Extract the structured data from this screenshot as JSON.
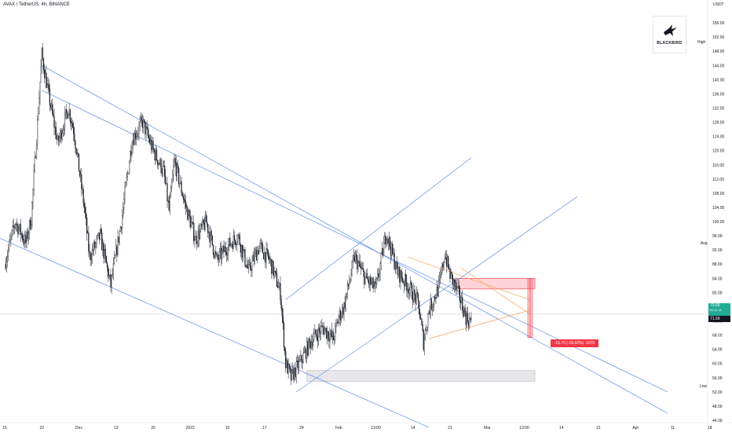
{
  "header": {
    "title": "AVAX / TetherUS, 4h, BINANCE",
    "price_unit": "USDT"
  },
  "logo": {
    "text": "BLACKBIRD",
    "icon": "blackbird-icon"
  },
  "side_labels": {
    "high": "High",
    "avg": "Avg",
    "low": "Low"
  },
  "price_tags": {
    "current": "73.69",
    "countdown": "01:11:11",
    "level": "71.69"
  },
  "measure": {
    "label": "-16.70 (-19.92%) -1670"
  },
  "colors": {
    "candle": "#131722",
    "trendline": "#5b8def",
    "orange": "#f7a14a",
    "red": "#f23645",
    "red_zone": "rgba(242,54,69,0.22)",
    "grey_zone": "rgba(120,123,134,0.18)",
    "green": "#22ab94",
    "axis_text": "#131722"
  },
  "chart_data": {
    "type": "candlestick",
    "title": "AVAX / TetherUS, 4h, BINANCE",
    "ylabel": "USDT",
    "y_axis_position": "right",
    "grid": false,
    "ylim": [
      44,
      160
    ],
    "y_ticks": [
      156,
      152,
      148,
      144,
      140,
      136,
      132,
      128,
      124,
      120,
      116,
      112,
      108,
      104,
      100,
      96,
      92,
      88,
      84,
      80,
      76,
      72,
      68,
      64,
      60,
      56,
      52,
      48,
      44
    ],
    "y_tick_labels": [
      "156.00",
      "152.00",
      "148.00",
      "144.00",
      "140.00",
      "136.00",
      "132.00",
      "128.00",
      "124.00",
      "120.00",
      "116.00",
      "112.00",
      "108.00",
      "104.00",
      "100.00",
      "96.00",
      "92.00",
      "88.00",
      "84.00",
      "80.00",
      "76.00",
      "72.00",
      "68.00",
      "64.00",
      "60.00",
      "56.00",
      "52.00",
      "48.00",
      "44.00"
    ],
    "x_tick_labels": [
      "15",
      "22",
      "Dec",
      "13",
      "20",
      "2022",
      "10",
      "17",
      "24",
      "Feb",
      "13:00",
      "14",
      "21",
      "Mar",
      "13:00",
      "14",
      "21",
      "Apr",
      "11",
      "18"
    ],
    "x_tick_index": [
      0,
      7,
      14,
      21,
      28,
      35,
      42,
      49,
      56,
      63,
      70,
      77,
      84,
      91,
      98,
      105,
      112,
      119,
      126,
      133
    ],
    "price_path": [
      [
        0,
        88
      ],
      [
        2,
        100
      ],
      [
        4,
        94
      ],
      [
        5,
        101
      ],
      [
        7,
        147
      ],
      [
        8,
        138
      ],
      [
        10,
        122
      ],
      [
        12,
        132
      ],
      [
        13,
        126
      ],
      [
        15,
        104
      ],
      [
        16,
        90
      ],
      [
        18,
        96
      ],
      [
        20,
        82
      ],
      [
        22,
        100
      ],
      [
        24,
        123
      ],
      [
        26,
        128
      ],
      [
        28,
        120
      ],
      [
        30,
        114
      ],
      [
        31,
        103
      ],
      [
        32,
        117
      ],
      [
        34,
        105
      ],
      [
        36,
        95
      ],
      [
        38,
        100
      ],
      [
        40,
        89
      ],
      [
        42,
        93
      ],
      [
        44,
        96
      ],
      [
        46,
        86
      ],
      [
        48,
        93
      ],
      [
        50,
        89
      ],
      [
        52,
        80
      ],
      [
        53,
        60
      ],
      [
        54,
        56
      ],
      [
        56,
        61
      ],
      [
        58,
        67
      ],
      [
        60,
        70
      ],
      [
        62,
        67
      ],
      [
        63,
        73
      ],
      [
        64,
        76
      ],
      [
        66,
        90
      ],
      [
        68,
        84
      ],
      [
        70,
        81
      ],
      [
        72,
        97
      ],
      [
        74,
        86
      ],
      [
        76,
        82
      ],
      [
        78,
        77
      ],
      [
        79,
        66
      ],
      [
        80,
        75
      ],
      [
        82,
        82
      ],
      [
        83,
        91
      ],
      [
        84,
        85
      ],
      [
        86,
        78
      ],
      [
        87,
        73
      ],
      [
        88,
        71.69
      ]
    ],
    "current_price": 73.69,
    "level_price": 71.69,
    "stats": {
      "high": 147.0,
      "avg": 91.98,
      "low": 52.95
    },
    "zones": [
      {
        "kind": "red",
        "from_index": 85,
        "to_index": 100,
        "from_price": 84.0,
        "to_price": 81.0
      },
      {
        "kind": "grey",
        "from_index": 57,
        "to_index": 100,
        "from_price": 58.0,
        "to_price": 55.0
      }
    ],
    "measure": {
      "from_price": 84.0,
      "to_price": 67.3,
      "change": -16.7,
      "percent": -19.92,
      "ticks": -1670
    },
    "trendlines": [
      {
        "from": [
          7,
          144
        ],
        "to": [
          125,
          46
        ]
      },
      {
        "from": [
          7,
          137
        ],
        "to": [
          125,
          52
        ]
      },
      {
        "from": [
          -2,
          96
        ],
        "to": [
          80,
          42
        ]
      },
      {
        "from": [
          53,
          78
        ],
        "to": [
          88,
          118
        ]
      },
      {
        "from": [
          55,
          52
        ],
        "to": [
          108,
          107
        ]
      }
    ],
    "orange_lines": [
      {
        "from": [
          76,
          90
        ],
        "to": [
          99,
          78
        ]
      },
      {
        "from": [
          80,
          67
        ],
        "to": [
          99,
          75
        ]
      },
      {
        "from": [
          86,
          87
        ],
        "to": [
          99,
          74
        ]
      }
    ]
  }
}
